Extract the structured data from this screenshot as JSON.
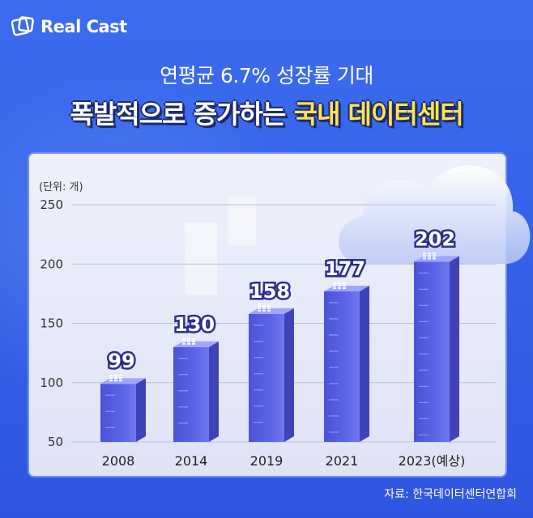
{
  "brand": {
    "name": "Real Cast"
  },
  "header": {
    "subtitle": "연평균 6.7% 성장률 기대",
    "title_part1": "폭발적으로 증가하는 ",
    "title_part2": "국내 데이터센터"
  },
  "colors": {
    "background": "#3a63e8",
    "title_highlight": "#ffe34d",
    "bar_front": "#5c63e6",
    "bar_side": "#3f43b8",
    "bar_top": "#9ea6ff"
  },
  "chart_data": {
    "type": "bar",
    "categories": [
      "2008",
      "2014",
      "2019",
      "2021",
      "2023(예상)"
    ],
    "values": [
      99,
      130,
      158,
      177,
      202
    ],
    "value_labels": [
      "99",
      "130",
      "158",
      "177",
      "202"
    ],
    "unit_label": "(단위: 개)",
    "ylim": [
      50,
      250
    ],
    "y_ticks": [
      50,
      100,
      150,
      200,
      250
    ],
    "grid": true,
    "legend": "none"
  },
  "source": "자료: 한국데이터센터연합회",
  "icons": [
    "logo-icon",
    "cloud-icon",
    "server-icon"
  ]
}
